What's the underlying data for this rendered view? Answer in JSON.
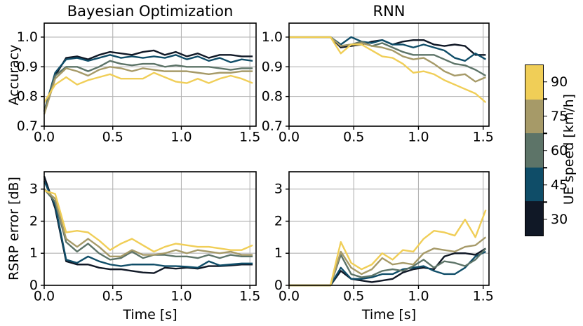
{
  "figure": {
    "background": "#ffffff",
    "grid_color": "#b3b3b3",
    "spine_color": "#000000",
    "colorbar": {
      "label": "UE speed [km/h]",
      "bands": [
        {
          "label": "90",
          "color": "#f0ce57"
        },
        {
          "label": "75",
          "color": "#a69a68"
        },
        {
          "label": "60",
          "color": "#5d7468"
        },
        {
          "label": "45",
          "color": "#0f4d68"
        },
        {
          "label": "30",
          "color": "#101826"
        }
      ]
    }
  },
  "chart_data": [
    {
      "type": "line",
      "title": "Bayesian Optimization",
      "ylabel": "Accuracy",
      "xlabel": "",
      "xlim": [
        0,
        1.545
      ],
      "ylim": [
        0.7,
        1.047
      ],
      "xticks": {
        "values": [
          0,
          0.5,
          1.0,
          1.5
        ],
        "labels": [
          "0.0",
          "0.5",
          "1.0",
          "1.5"
        ]
      },
      "yticks": {
        "values": [
          0.7,
          0.8,
          0.9,
          1.0
        ],
        "labels": [
          "0.7",
          "0.8",
          "0.9",
          "1.0"
        ]
      },
      "grid": true,
      "x": [
        0.0,
        0.08,
        0.16,
        0.24,
        0.32,
        0.4,
        0.48,
        0.56,
        0.64,
        0.72,
        0.8,
        0.88,
        0.96,
        1.04,
        1.12,
        1.2,
        1.28,
        1.36,
        1.44,
        1.52
      ],
      "series": [
        {
          "name": "30",
          "color": "#101826",
          "values": [
            0.75,
            0.87,
            0.93,
            0.935,
            0.925,
            0.94,
            0.95,
            0.945,
            0.94,
            0.95,
            0.955,
            0.94,
            0.95,
            0.935,
            0.945,
            0.93,
            0.94,
            0.94,
            0.935,
            0.935
          ]
        },
        {
          "name": "45",
          "color": "#0f4d68",
          "values": [
            0.75,
            0.88,
            0.925,
            0.93,
            0.92,
            0.93,
            0.94,
            0.93,
            0.935,
            0.93,
            0.935,
            0.93,
            0.94,
            0.925,
            0.935,
            0.92,
            0.93,
            0.915,
            0.925,
            0.92
          ]
        },
        {
          "name": "60",
          "color": "#5d7468",
          "values": [
            0.75,
            0.87,
            0.9,
            0.9,
            0.885,
            0.9,
            0.92,
            0.91,
            0.905,
            0.91,
            0.91,
            0.9,
            0.905,
            0.9,
            0.9,
            0.9,
            0.895,
            0.89,
            0.895,
            0.895
          ]
        },
        {
          "name": "75",
          "color": "#a69a68",
          "values": [
            0.74,
            0.86,
            0.895,
            0.885,
            0.87,
            0.89,
            0.9,
            0.895,
            0.885,
            0.895,
            0.89,
            0.885,
            0.885,
            0.885,
            0.88,
            0.875,
            0.88,
            0.88,
            0.885,
            0.885
          ]
        },
        {
          "name": "90",
          "color": "#f0ce57",
          "values": [
            0.78,
            0.84,
            0.865,
            0.84,
            0.855,
            0.865,
            0.875,
            0.86,
            0.86,
            0.86,
            0.88,
            0.865,
            0.85,
            0.845,
            0.86,
            0.845,
            0.86,
            0.87,
            0.86,
            0.845
          ]
        }
      ]
    },
    {
      "type": "line",
      "title": "RNN",
      "ylabel": "",
      "xlabel": "",
      "xlim": [
        0,
        1.545
      ],
      "ylim": [
        0.7,
        1.047
      ],
      "xticks": {
        "values": [
          0,
          0.5,
          1.0,
          1.5
        ],
        "labels": [
          "0.0",
          "0.5",
          "1.0",
          "1.5"
        ]
      },
      "yticks": {
        "values": [
          0.7,
          0.8,
          0.9,
          1.0
        ],
        "labels": [
          "0.7",
          "0.8",
          "0.9",
          "1.0"
        ]
      },
      "grid": true,
      "x": [
        0.0,
        0.08,
        0.16,
        0.24,
        0.32,
        0.4,
        0.48,
        0.56,
        0.64,
        0.72,
        0.8,
        0.88,
        0.96,
        1.04,
        1.12,
        1.2,
        1.28,
        1.36,
        1.44,
        1.52
      ],
      "series": [
        {
          "name": "30",
          "color": "#101826",
          "values": [
            1.0,
            1.0,
            1.0,
            1.0,
            1.0,
            0.965,
            0.97,
            0.975,
            0.985,
            0.99,
            0.975,
            0.985,
            0.99,
            0.99,
            0.975,
            0.97,
            0.975,
            0.97,
            0.94,
            0.94
          ]
        },
        {
          "name": "45",
          "color": "#0f4d68",
          "values": [
            1.0,
            1.0,
            1.0,
            1.0,
            1.0,
            0.975,
            1.0,
            0.985,
            0.98,
            0.99,
            0.975,
            0.975,
            0.965,
            0.975,
            0.965,
            0.955,
            0.93,
            0.92,
            0.945,
            0.925
          ]
        },
        {
          "name": "60",
          "color": "#5d7468",
          "values": [
            1.0,
            1.0,
            1.0,
            1.0,
            1.0,
            0.97,
            0.975,
            0.985,
            0.97,
            0.98,
            0.965,
            0.95,
            0.94,
            0.94,
            0.94,
            0.925,
            0.91,
            0.905,
            0.89,
            0.87
          ]
        },
        {
          "name": "75",
          "color": "#a69a68",
          "values": [
            1.0,
            1.0,
            1.0,
            1.0,
            1.0,
            0.97,
            0.975,
            0.98,
            0.97,
            0.965,
            0.955,
            0.935,
            0.925,
            0.93,
            0.91,
            0.885,
            0.87,
            0.875,
            0.85,
            0.865
          ]
        },
        {
          "name": "90",
          "color": "#f0ce57",
          "values": [
            1.0,
            1.0,
            1.0,
            1.0,
            1.0,
            0.945,
            0.975,
            0.975,
            0.955,
            0.935,
            0.93,
            0.91,
            0.88,
            0.885,
            0.875,
            0.855,
            0.84,
            0.825,
            0.81,
            0.78
          ]
        }
      ]
    },
    {
      "type": "line",
      "title": "",
      "ylabel": "RSRP error [dB]",
      "xlabel": "Time [s]",
      "xlim": [
        0,
        1.545
      ],
      "ylim": [
        0,
        3.54
      ],
      "xticks": {
        "values": [
          0,
          0.5,
          1.0,
          1.5
        ],
        "labels": [
          "0.0",
          "0.5",
          "1.0",
          "1.5"
        ]
      },
      "yticks": {
        "values": [
          0,
          1,
          2,
          3
        ],
        "labels": [
          "0",
          "1",
          "2",
          "3"
        ]
      },
      "grid": true,
      "x": [
        0.0,
        0.08,
        0.16,
        0.24,
        0.32,
        0.4,
        0.48,
        0.56,
        0.64,
        0.72,
        0.8,
        0.88,
        0.96,
        1.04,
        1.12,
        1.2,
        1.28,
        1.36,
        1.44,
        1.52
      ],
      "series": [
        {
          "name": "30",
          "color": "#101826",
          "values": [
            3.4,
            2.4,
            0.75,
            0.65,
            0.65,
            0.55,
            0.5,
            0.5,
            0.45,
            0.4,
            0.38,
            0.55,
            0.52,
            0.55,
            0.52,
            0.6,
            0.6,
            0.62,
            0.65,
            0.65
          ]
        },
        {
          "name": "45",
          "color": "#0f4d68",
          "values": [
            3.25,
            2.5,
            0.8,
            0.7,
            0.9,
            0.75,
            0.65,
            0.6,
            0.65,
            0.65,
            0.65,
            0.6,
            0.6,
            0.58,
            0.55,
            0.75,
            0.62,
            0.65,
            0.68,
            0.68
          ]
        },
        {
          "name": "60",
          "color": "#5d7468",
          "values": [
            3.0,
            2.6,
            1.35,
            1.05,
            1.3,
            1.0,
            0.8,
            0.85,
            1.05,
            0.85,
            0.95,
            0.95,
            0.9,
            0.9,
            0.85,
            0.95,
            0.85,
            0.95,
            0.9,
            0.9
          ]
        },
        {
          "name": "75",
          "color": "#a69a68",
          "values": [
            3.0,
            2.7,
            1.45,
            1.2,
            1.45,
            1.2,
            0.9,
            0.9,
            1.1,
            0.95,
            0.95,
            1.0,
            1.1,
            1.0,
            1.1,
            1.05,
            1.0,
            1.05,
            0.95,
            0.95
          ]
        },
        {
          "name": "90",
          "color": "#f0ce57",
          "values": [
            2.95,
            2.85,
            1.65,
            1.7,
            1.65,
            1.4,
            1.1,
            1.3,
            1.45,
            1.25,
            1.05,
            1.2,
            1.3,
            1.25,
            1.2,
            1.2,
            1.15,
            1.1,
            1.1,
            1.25
          ]
        }
      ]
    },
    {
      "type": "line",
      "title": "",
      "ylabel": "",
      "xlabel": "Time [s]",
      "xlim": [
        0,
        1.545
      ],
      "ylim": [
        0,
        3.54
      ],
      "xticks": {
        "values": [
          0,
          0.5,
          1.0,
          1.5
        ],
        "labels": [
          "0.0",
          "0.5",
          "1.0",
          "1.5"
        ]
      },
      "yticks": {
        "values": [
          0,
          1,
          2,
          3
        ],
        "labels": [
          "0",
          "1",
          "2",
          "3"
        ]
      },
      "grid": true,
      "x": [
        0.0,
        0.08,
        0.16,
        0.24,
        0.32,
        0.4,
        0.48,
        0.56,
        0.64,
        0.72,
        0.8,
        0.88,
        0.96,
        1.04,
        1.12,
        1.2,
        1.28,
        1.36,
        1.44,
        1.52
      ],
      "series": [
        {
          "name": "30",
          "color": "#101826",
          "values": [
            0,
            0,
            0,
            0,
            0,
            0.45,
            0.2,
            0.15,
            0.1,
            0.15,
            0.2,
            0.4,
            0.5,
            0.55,
            0.5,
            0.9,
            1.0,
            1.0,
            0.95,
            1.15
          ]
        },
        {
          "name": "45",
          "color": "#0f4d68",
          "values": [
            0,
            0,
            0,
            0,
            0,
            0.55,
            0.2,
            0.2,
            0.25,
            0.35,
            0.35,
            0.5,
            0.55,
            0.6,
            0.45,
            0.35,
            0.35,
            0.55,
            0.9,
            1.05
          ]
        },
        {
          "name": "60",
          "color": "#5d7468",
          "values": [
            0,
            0,
            0,
            0,
            0,
            0.95,
            0.35,
            0.25,
            0.3,
            0.45,
            0.5,
            0.45,
            0.6,
            0.8,
            0.55,
            0.75,
            0.7,
            0.6,
            0.8,
            1.15
          ]
        },
        {
          "name": "75",
          "color": "#a69a68",
          "values": [
            0,
            0,
            0,
            0,
            0,
            1.05,
            0.55,
            0.35,
            0.5,
            0.85,
            0.65,
            0.7,
            0.65,
            1.0,
            1.15,
            1.1,
            1.05,
            1.2,
            1.25,
            1.5
          ]
        },
        {
          "name": "90",
          "color": "#f0ce57",
          "values": [
            0,
            0,
            0,
            0,
            0,
            1.35,
            0.7,
            0.5,
            0.65,
            1.0,
            0.8,
            1.1,
            1.05,
            1.45,
            1.7,
            1.65,
            1.55,
            2.05,
            1.5,
            2.35
          ]
        }
      ]
    }
  ]
}
